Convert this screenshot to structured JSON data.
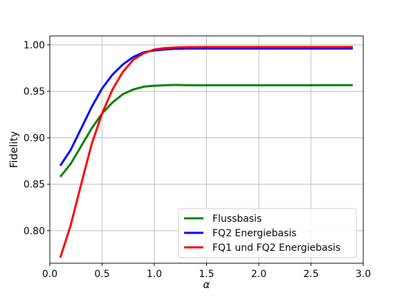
{
  "chart_data": {
    "type": "line",
    "xlabel": "α",
    "ylabel": "Fidelity",
    "xlim": [
      0.0,
      3.0
    ],
    "ylim": [
      0.765,
      1.0096
    ],
    "xticks": [
      0.0,
      0.5,
      1.0,
      1.5,
      2.0,
      2.5,
      3.0
    ],
    "xtick_labels": [
      "0.0",
      "0.5",
      "1.0",
      "1.5",
      "2.0",
      "2.5",
      "3.0"
    ],
    "yticks": [
      0.8,
      0.85,
      0.9,
      0.95,
      1.0
    ],
    "ytick_labels": [
      "0.80",
      "0.85",
      "0.90",
      "0.95",
      "1.00"
    ],
    "grid": true,
    "legend_position": "bottom-right",
    "x": [
      0.1,
      0.2,
      0.3,
      0.4,
      0.5,
      0.6,
      0.7,
      0.8,
      0.9,
      1.0,
      1.1,
      1.2,
      1.3,
      1.4,
      1.5,
      1.6,
      1.7,
      1.8,
      1.9,
      2.0,
      2.1,
      2.2,
      2.3,
      2.4,
      2.5,
      2.6,
      2.7,
      2.8,
      2.9
    ],
    "series": [
      {
        "name": "Flussbasis",
        "color": "#008000",
        "values": [
          0.858,
          0.872,
          0.891,
          0.91,
          0.926,
          0.938,
          0.947,
          0.952,
          0.955,
          0.956,
          0.9565,
          0.9568,
          0.9566,
          0.9565,
          0.9565,
          0.9565,
          0.9565,
          0.9565,
          0.9565,
          0.9565,
          0.9565,
          0.9565,
          0.9565,
          0.9565,
          0.9565,
          0.9566,
          0.9566,
          0.9567,
          0.9567
        ]
      },
      {
        "name": "FQ2 Energiebasis",
        "color": "#0000ff",
        "values": [
          0.87,
          0.887,
          0.91,
          0.933,
          0.953,
          0.968,
          0.979,
          0.987,
          0.992,
          0.994,
          0.995,
          0.9958,
          0.996,
          0.996,
          0.996,
          0.996,
          0.996,
          0.996,
          0.996,
          0.996,
          0.996,
          0.996,
          0.996,
          0.996,
          0.996,
          0.996,
          0.996,
          0.996,
          0.996
        ]
      },
      {
        "name": "FQ1 und FQ2 Energiebasis",
        "color": "#ff0000",
        "values": [
          0.771,
          0.806,
          0.85,
          0.893,
          0.926,
          0.952,
          0.971,
          0.984,
          0.991,
          0.995,
          0.9965,
          0.9972,
          0.9975,
          0.9976,
          0.9977,
          0.9977,
          0.9977,
          0.9977,
          0.9977,
          0.9977,
          0.9977,
          0.9977,
          0.9977,
          0.9977,
          0.9977,
          0.9977,
          0.9977,
          0.9977,
          0.9977
        ]
      }
    ]
  }
}
